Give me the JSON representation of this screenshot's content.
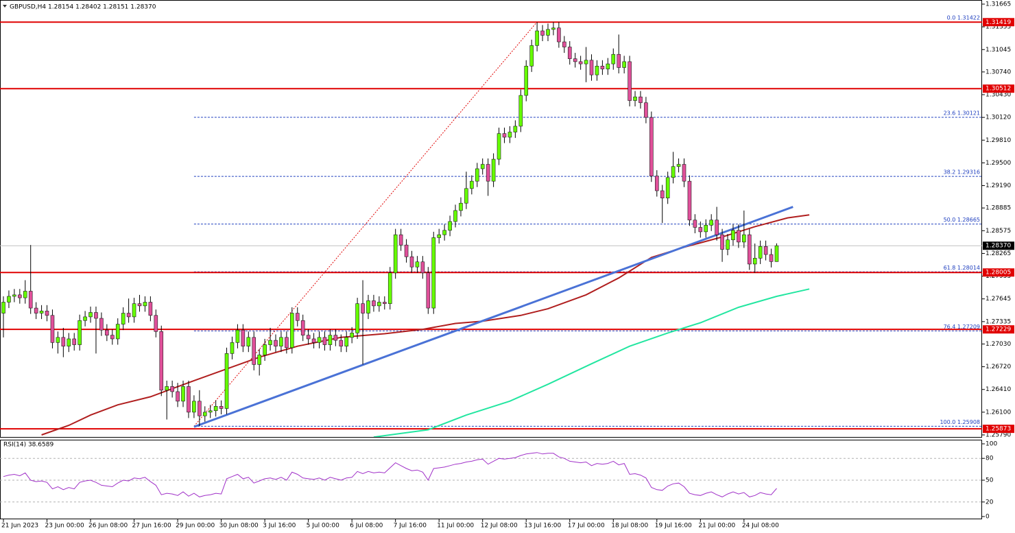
{
  "chart_data": [
    {
      "type": "candlestick",
      "title": "GBPUSD,H4  1.28154 1.28402 1.28151 1.28370",
      "categories": [
        "21 Jun 2023",
        null,
        null,
        null,
        null,
        null,
        null,
        null,
        "23 Jun 00:00",
        null,
        null,
        null,
        null,
        null,
        null,
        null,
        "26 Jun 08:00",
        null,
        null,
        null,
        null,
        null,
        null,
        null,
        "27 Jun 16:00",
        null,
        null,
        null,
        null,
        null,
        null,
        null,
        "29 Jun 00:00",
        null,
        null,
        null,
        null,
        null,
        null,
        null,
        "30 Jun 08:00",
        null,
        null,
        null,
        null,
        null,
        null,
        null,
        "3 Jul 16:00",
        null,
        null,
        null,
        null,
        null,
        null,
        null,
        "5 Jul 00:00",
        null,
        null,
        null,
        null,
        null,
        null,
        null,
        "6 Jul 08:00",
        null,
        null,
        null,
        null,
        null,
        null,
        null,
        "7 Jul 16:00",
        null,
        null,
        null,
        null,
        null,
        null,
        null,
        "11 Jul 00:00",
        null,
        null,
        null,
        null,
        null,
        null,
        null,
        "12 Jul 08:00",
        null,
        null,
        null,
        null,
        null,
        null,
        null,
        "13 Jul 16:00",
        null,
        null,
        null,
        null,
        null,
        null,
        null,
        "17 Jul 00:00",
        null,
        null,
        null,
        null,
        null,
        null,
        null,
        "18 Jul 08:00",
        null,
        null,
        null,
        null,
        null,
        null,
        null,
        "19 Jul 16:00",
        null,
        null,
        null,
        null,
        null,
        null,
        null,
        "21 Jul 00:00",
        null,
        null,
        null,
        null,
        null,
        null,
        null,
        "24 Jul 08:00",
        null,
        null,
        null,
        null,
        null,
        null
      ],
      "open": [
        1.2745,
        1.276,
        1.2768,
        1.277,
        1.2766,
        1.2775,
        1.2752,
        1.2745,
        1.2748,
        1.2742,
        1.2705,
        1.2712,
        1.27,
        1.271,
        1.2702,
        1.2735,
        1.274,
        1.2746,
        1.2738,
        1.2722,
        1.2715,
        1.271,
        1.273,
        1.2745,
        1.274,
        1.2758,
        1.2755,
        1.276,
        1.2742,
        1.272,
        1.264,
        1.2645,
        1.2638,
        1.2625,
        1.2645,
        1.261,
        1.2625,
        1.2605,
        1.261,
        1.2612,
        1.2618,
        1.2615,
        1.269,
        1.2705,
        1.2722,
        1.27,
        1.2712,
        1.2675,
        1.2688,
        1.2702,
        1.2708,
        1.27,
        1.2712,
        1.2698,
        1.2745,
        1.2735,
        1.2715,
        1.271,
        1.2705,
        1.2712,
        1.2702,
        1.2715,
        1.2708,
        1.27,
        1.2712,
        1.2718,
        1.2758,
        1.2745,
        1.2762,
        1.2755,
        1.276,
        1.2758,
        1.28,
        1.2852,
        1.2838,
        1.2822,
        1.2808,
        1.2815,
        1.28,
        1.2752,
        1.2848,
        1.2852,
        1.2858,
        1.287,
        1.2885,
        1.2895,
        1.2915,
        1.2925,
        1.2942,
        1.2948,
        1.2925,
        1.2955,
        1.299,
        1.2985,
        1.2992,
        1.3,
        1.3042,
        1.3082,
        1.311,
        1.313,
        1.3124,
        1.3132,
        1.3134,
        1.3115,
        1.3108,
        1.3092,
        1.3088,
        1.3085,
        1.309,
        1.307,
        1.3082,
        1.3078,
        1.3085,
        1.3098,
        1.308,
        1.3088,
        1.3035,
        1.304,
        1.3032,
        1.3012,
        1.2932,
        1.2912,
        1.2902,
        1.293,
        1.2945,
        1.2948,
        1.2925,
        1.2872,
        1.2862,
        1.2856,
        1.2865,
        1.2872,
        1.2852,
        1.2832,
        1.2845,
        1.2858,
        1.2842,
        1.2852,
        1.2812,
        1.282,
        1.2836,
        1.2825,
        1.28154
      ],
      "high": [
        1.2768,
        1.2776,
        1.2778,
        1.2778,
        1.279,
        1.2838,
        1.276,
        1.2756,
        1.2756,
        1.275,
        1.272,
        1.2725,
        1.2718,
        1.2718,
        1.2743,
        1.2748,
        1.2754,
        1.2754,
        1.2746,
        1.273,
        1.2723,
        1.2738,
        1.2753,
        1.2765,
        1.2766,
        1.277,
        1.2768,
        1.2768,
        1.275,
        1.2728,
        1.2653,
        1.2653,
        1.265,
        1.2653,
        1.2653,
        1.2633,
        1.264,
        1.2618,
        1.262,
        1.2626,
        1.2626,
        1.2698,
        1.2713,
        1.273,
        1.273,
        1.272,
        1.272,
        1.2696,
        1.271,
        1.2725,
        1.2716,
        1.272,
        1.272,
        1.2753,
        1.2753,
        1.2743,
        1.2723,
        1.2718,
        1.272,
        1.272,
        1.2723,
        1.2723,
        1.2716,
        1.272,
        1.2726,
        1.2766,
        1.279,
        1.277,
        1.277,
        1.2768,
        1.2768,
        1.2808,
        1.286,
        1.286,
        1.2846,
        1.283,
        1.2823,
        1.2823,
        1.2808,
        1.2856,
        1.286,
        1.2866,
        1.2878,
        1.2893,
        1.2903,
        1.2938,
        1.2933,
        1.295,
        1.2956,
        1.2956,
        1.2963,
        1.2998,
        1.2998,
        1.3,
        1.3008,
        1.305,
        1.309,
        1.3118,
        1.3142,
        1.3138,
        1.314,
        1.3142,
        1.3142,
        1.3123,
        1.3116,
        1.31,
        1.3096,
        1.3108,
        1.3098,
        1.309,
        1.309,
        1.3093,
        1.3106,
        1.3125,
        1.3096,
        1.3096,
        1.3048,
        1.3048,
        1.304,
        1.302,
        1.294,
        1.292,
        1.2938,
        1.2965,
        1.2956,
        1.2956,
        1.2933,
        1.288,
        1.287,
        1.2873,
        1.288,
        1.289,
        1.286,
        1.2853,
        1.2866,
        1.2866,
        1.2885,
        1.286,
        1.284,
        1.2844,
        1.2844,
        1.2833,
        1.28402
      ],
      "low": [
        1.2712,
        1.2752,
        1.276,
        1.2758,
        1.2758,
        1.2744,
        1.2737,
        1.2737,
        1.2734,
        1.2697,
        1.269,
        1.2685,
        1.2692,
        1.2694,
        1.2694,
        1.2727,
        1.2732,
        1.269,
        1.2714,
        1.2707,
        1.2702,
        1.2702,
        1.2722,
        1.2732,
        1.2732,
        1.2747,
        1.2747,
        1.2734,
        1.2712,
        1.2632,
        1.26,
        1.263,
        1.2617,
        1.2617,
        1.2602,
        1.2602,
        1.2591,
        1.2597,
        1.2602,
        1.2604,
        1.2607,
        1.2607,
        1.2682,
        1.2697,
        1.2692,
        1.2692,
        1.2667,
        1.266,
        1.268,
        1.2694,
        1.2692,
        1.2692,
        1.269,
        1.269,
        1.2727,
        1.2707,
        1.2702,
        1.2697,
        1.2697,
        1.2694,
        1.2694,
        1.27,
        1.2692,
        1.2692,
        1.2704,
        1.271,
        1.2675,
        1.2737,
        1.2747,
        1.2747,
        1.275,
        1.275,
        1.2792,
        1.283,
        1.2814,
        1.28,
        1.28,
        1.2792,
        1.2744,
        1.2744,
        1.284,
        1.2844,
        1.285,
        1.2862,
        1.2877,
        1.2887,
        1.2907,
        1.2917,
        1.2934,
        1.2905,
        1.2917,
        1.2947,
        1.2977,
        1.2977,
        1.2984,
        1.2992,
        1.3034,
        1.3074,
        1.3102,
        1.3116,
        1.3116,
        1.3124,
        1.3107,
        1.31,
        1.3084,
        1.308,
        1.3077,
        1.306,
        1.3062,
        1.3062,
        1.307,
        1.307,
        1.3077,
        1.3072,
        1.3072,
        1.3027,
        1.3027,
        1.3024,
        1.3004,
        1.2924,
        1.2904,
        1.2868,
        1.2894,
        1.2922,
        1.2937,
        1.2917,
        1.2864,
        1.2854,
        1.2848,
        1.2848,
        1.2857,
        1.2844,
        1.2815,
        1.2824,
        1.2837,
        1.2834,
        1.2834,
        1.2804,
        1.28,
        1.2812,
        1.2817,
        1.28074,
        1.28151
      ],
      "close": [
        1.276,
        1.2768,
        1.277,
        1.2766,
        1.2775,
        1.2752,
        1.2745,
        1.2748,
        1.2742,
        1.2705,
        1.2712,
        1.27,
        1.271,
        1.2702,
        1.2735,
        1.274,
        1.2746,
        1.2738,
        1.2722,
        1.2715,
        1.271,
        1.273,
        1.2745,
        1.274,
        1.2758,
        1.2755,
        1.276,
        1.2742,
        1.272,
        1.264,
        1.2645,
        1.2638,
        1.2625,
        1.2645,
        1.261,
        1.2625,
        1.2605,
        1.261,
        1.2612,
        1.2618,
        1.2615,
        1.269,
        1.2705,
        1.2722,
        1.27,
        1.2712,
        1.2675,
        1.2688,
        1.2702,
        1.2708,
        1.27,
        1.2712,
        1.2698,
        1.2745,
        1.2735,
        1.2715,
        1.271,
        1.2705,
        1.2712,
        1.2702,
        1.2715,
        1.2708,
        1.27,
        1.2712,
        1.2718,
        1.2758,
        1.2745,
        1.2762,
        1.2755,
        1.276,
        1.2758,
        1.28,
        1.2852,
        1.2838,
        1.2822,
        1.2808,
        1.2815,
        1.28,
        1.2752,
        1.2848,
        1.2852,
        1.2858,
        1.287,
        1.2885,
        1.2895,
        1.2915,
        1.2925,
        1.2942,
        1.2948,
        1.2925,
        1.2955,
        1.299,
        1.2985,
        1.2992,
        1.3,
        1.3042,
        1.3082,
        1.311,
        1.313,
        1.3124,
        1.3132,
        1.3134,
        1.3115,
        1.3108,
        1.3092,
        1.3088,
        1.3085,
        1.309,
        1.307,
        1.3082,
        1.3078,
        1.3085,
        1.3098,
        1.308,
        1.3088,
        1.3035,
        1.304,
        1.3032,
        1.3012,
        1.2932,
        1.2912,
        1.2902,
        1.293,
        1.2945,
        1.2948,
        1.2925,
        1.2872,
        1.2862,
        1.2856,
        1.2865,
        1.2872,
        1.2852,
        1.2832,
        1.2845,
        1.2858,
        1.2842,
        1.2852,
        1.2812,
        1.282,
        1.2836,
        1.2825,
        1.28154,
        1.2837
      ],
      "up_color": "#66ff00",
      "down_color": "#e0509a",
      "ylim": [
        1.25762,
        1.31721
      ],
      "yticks": [
        1.31665,
        1.31355,
        1.31045,
        {
          "value": 1.3074,
          "label": "1.30740"
        },
        {
          "value": 1.3043,
          "label": "1.30430"
        },
        {
          "value": 1.3012,
          "label": "1.30120"
        },
        {
          "value": 1.2981,
          "label": "1.29810"
        },
        {
          "value": 1.295,
          "label": "1.29500"
        },
        {
          "value": 1.2919,
          "label": "1.29190"
        },
        1.28885,
        1.28575,
        1.28265,
        1.27955,
        1.27645,
        1.27335,
        {
          "value": 1.2703,
          "label": "1.27030"
        },
        {
          "value": 1.2672,
          "label": "1.26720"
        },
        {
          "value": 1.2641,
          "label": "1.26410"
        },
        {
          "value": 1.261,
          "label": "1.26100"
        },
        {
          "value": 1.2579,
          "label": "1.25790"
        }
      ],
      "moving_averages": [
        {
          "color": "#b01e1e",
          "x": [
            7,
            12,
            16,
            21,
            27,
            35,
            41,
            47,
            54,
            62,
            70,
            77,
            83,
            88,
            95,
            100,
            107,
            113,
            119,
            125,
            132,
            138,
            144,
            148
          ],
          "values": [
            1.2579,
            1.2592,
            1.2606,
            1.262,
            1.2631,
            1.2653,
            1.2669,
            1.2685,
            1.27,
            1.2712,
            1.2717,
            1.2723,
            1.2731,
            1.2734,
            1.2742,
            1.2751,
            1.277,
            1.2793,
            1.2821,
            1.2835,
            1.2849,
            1.2863,
            1.2875,
            1.2879
          ]
        },
        {
          "color": "#22e6a0",
          "x": [
            68,
            78,
            85,
            93,
            100,
            108,
            115,
            122,
            128,
            135,
            142,
            148
          ],
          "values": [
            1.2576,
            1.2586,
            1.2606,
            1.2625,
            1.2648,
            1.2676,
            1.27,
            1.2718,
            1.2732,
            1.2753,
            1.2768,
            1.2778
          ]
        }
      ],
      "trendline": {
        "color": "#4a72d6",
        "x": [
          35,
          145
        ],
        "values": [
          1.259,
          1.289
        ]
      },
      "fib_line": {
        "color": "#e00000",
        "x": [
          35,
          98
        ],
        "values": [
          1.25908,
          1.31422
        ]
      },
      "fib_color": "#1f3fbf",
      "fib_levels": [
        {
          "label": "0.0 1.31422",
          "value": 1.31422
        },
        {
          "label": "23.6 1.30121",
          "value": 1.30121
        },
        {
          "label": "38.2 1.29316",
          "value": 1.29316
        },
        {
          "label": "50.0 1.28665",
          "value": 1.28665
        },
        {
          "label": "61.8 1.28014",
          "value": 1.28014
        },
        {
          "label": "76.4 1.27209",
          "value": 1.27209
        },
        {
          "label": "100.0 1.25908",
          "value": 1.25908
        }
      ],
      "levels": [
        1.31419,
        1.30512,
        1.28005,
        1.27229,
        1.25873
      ],
      "level_color": "#e00000",
      "current_price": {
        "value": 1.2837,
        "label": "1.28370"
      }
    },
    {
      "type": "line",
      "title": "RSI(14) 38.6589",
      "color": "#a030c8",
      "values": [
        55,
        57,
        58,
        56,
        60,
        50,
        48,
        49,
        47,
        38,
        41,
        37,
        40,
        38,
        47,
        49,
        50,
        47,
        43,
        42,
        41,
        46,
        50,
        49,
        53,
        52,
        54,
        48,
        43,
        30,
        32,
        31,
        29,
        34,
        28,
        32,
        27,
        29,
        30,
        32,
        31,
        52,
        55,
        58,
        52,
        54,
        46,
        49,
        52,
        53,
        51,
        54,
        50,
        61,
        58,
        53,
        52,
        51,
        53,
        50,
        54,
        52,
        50,
        53,
        54,
        62,
        59,
        62,
        60,
        61,
        60,
        67,
        74,
        70,
        66,
        63,
        64,
        61,
        50,
        66,
        67,
        68,
        70,
        72,
        73,
        75,
        76,
        78,
        79,
        72,
        76,
        80,
        79,
        80,
        81,
        84,
        86,
        87,
        88,
        86,
        87,
        87,
        82,
        80,
        76,
        75,
        74,
        75,
        70,
        73,
        72,
        73,
        76,
        71,
        73,
        58,
        59,
        57,
        53,
        40,
        37,
        36,
        42,
        45,
        46,
        41,
        32,
        30,
        29,
        32,
        34,
        30,
        27,
        31,
        34,
        31,
        33,
        27,
        29,
        33,
        31,
        30,
        38.6589
      ],
      "ylim": [
        0,
        100
      ],
      "yticks": [
        100,
        80,
        50,
        20,
        0
      ],
      "levels": [
        80,
        50,
        20
      ]
    }
  ]
}
